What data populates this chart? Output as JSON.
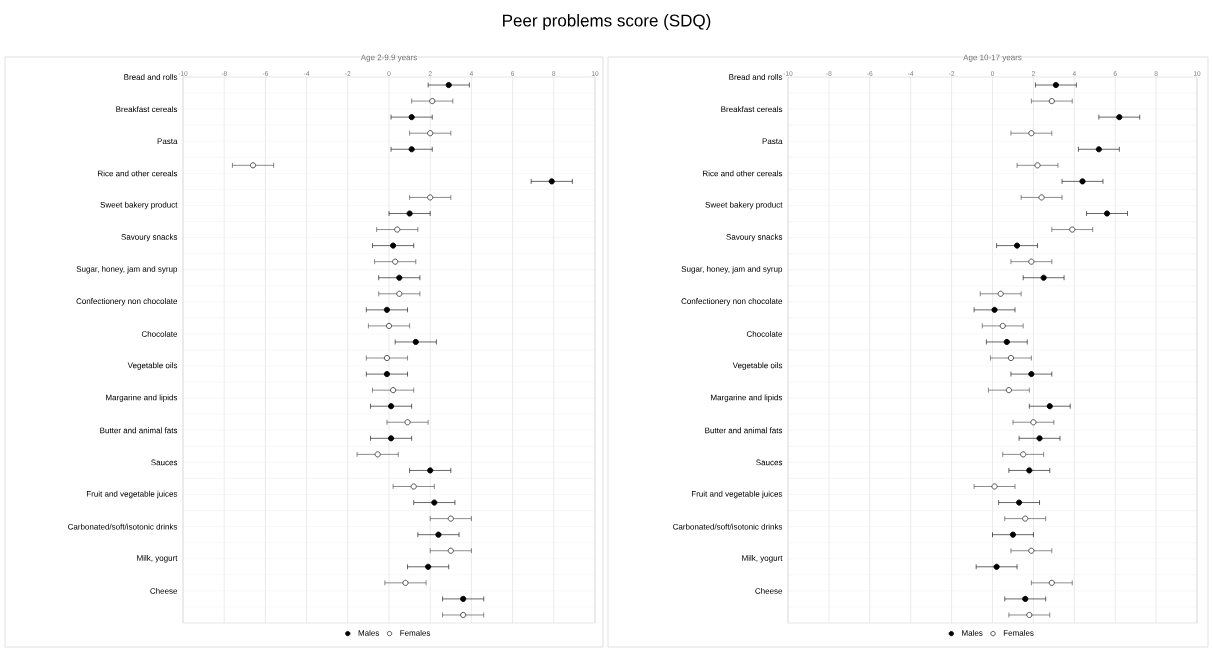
{
  "chart_data": [
    {
      "type": "scatter",
      "title": "Peer problems score (SDQ)",
      "subtitle": "Age 2-9.9 years",
      "orientation": "horizontal",
      "categories": [
        "Bread and rolls",
        "Breakfast cereals",
        "Pasta",
        "Rice and other cereals",
        "Sweet bakery product",
        "Savoury snacks",
        "Sugar, honey, jam and syrup",
        "Confectionery non chocolate",
        "Chocolate",
        "Vegetable oils",
        "Margarine and lipids",
        "Butter and animal fats",
        "Sauces",
        "Fruit and vegetable juices",
        "Carbonated/soft/isotonic drinks",
        "Milk, yogurt",
        "Cheese"
      ],
      "series": [
        {
          "name": "Males",
          "color": "#000000",
          "values": [
            2.9,
            1.1,
            1.1,
            7.9,
            1.0,
            0.2,
            0.5,
            -0.1,
            1.3,
            -0.1,
            0.1,
            0.1,
            2.0,
            2.2,
            2.4,
            1.9,
            3.6
          ],
          "errors": [
            1,
            1,
            1,
            1,
            1,
            1,
            1,
            1,
            1,
            1,
            1,
            1,
            1,
            1,
            1,
            1,
            1
          ]
        },
        {
          "name": "Females",
          "color": "#404040",
          "values": [
            2.1,
            2.0,
            -6.6,
            2.0,
            0.4,
            0.3,
            0.5,
            0.0,
            -0.1,
            0.2,
            0.9,
            -0.55,
            1.2,
            3.0,
            3.0,
            0.8,
            3.6
          ],
          "errors": [
            1,
            1,
            1,
            1,
            1,
            1,
            1,
            1,
            1,
            1,
            1,
            1,
            1,
            1,
            1,
            1,
            1
          ]
        }
      ],
      "xlim": [
        -10,
        10
      ],
      "xticks": [
        -10,
        -8,
        -6,
        -4,
        -2,
        0,
        2,
        4,
        6,
        8,
        10
      ],
      "grid": true,
      "legend": "bottom",
      "marker": "circle"
    },
    {
      "type": "scatter",
      "subtitle": "Age 10-17 years",
      "orientation": "horizontal",
      "categories": [
        "Bread and rolls",
        "Breakfast cereals",
        "Pasta",
        "Rice and other cereals",
        "Sweet bakery product",
        "Savoury snacks",
        "Sugar, honey, jam and syrup",
        "Confectionery non chocolate",
        "Chocolate",
        "Vegetable oils",
        "Margarine and lipids",
        "Butter and animal fats",
        "Sauces",
        "Fruit and vegetable juices",
        "Carbonated/soft/isotonic drinks",
        "Milk, yogurt",
        "Cheese"
      ],
      "series": [
        {
          "name": "Males",
          "color": "#000000",
          "values": [
            3.1,
            6.2,
            5.2,
            4.4,
            5.6,
            1.2,
            2.5,
            0.1,
            0.7,
            1.9,
            2.8,
            2.3,
            1.8,
            1.3,
            1.0,
            0.2,
            1.6
          ],
          "errors": [
            1,
            1,
            1,
            1,
            1,
            1,
            1,
            1,
            1,
            1,
            1,
            1,
            1,
            1,
            1,
            1,
            1
          ]
        },
        {
          "name": "Females",
          "color": "#404040",
          "values": [
            2.9,
            1.9,
            2.2,
            2.4,
            3.9,
            1.9,
            0.4,
            0.5,
            0.9,
            0.8,
            2.0,
            1.5,
            0.1,
            1.6,
            1.9,
            2.9,
            1.8
          ],
          "errors": [
            1,
            1,
            1,
            1,
            1,
            1,
            1,
            1,
            1,
            1,
            1,
            1,
            1,
            1,
            1,
            1,
            1
          ]
        }
      ],
      "xlim": [
        -10,
        10
      ],
      "xticks": [
        -10,
        -8,
        -6,
        -4,
        -2,
        0,
        2,
        4,
        6,
        8,
        10
      ],
      "grid": true,
      "legend": "bottom",
      "marker": "circle"
    }
  ]
}
